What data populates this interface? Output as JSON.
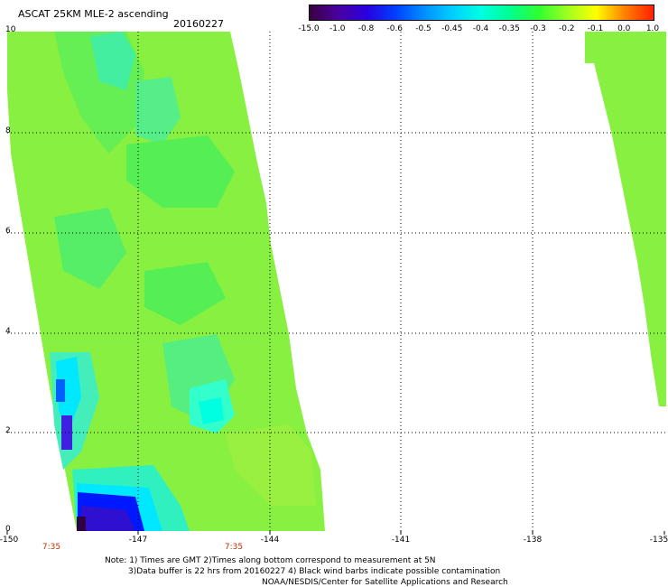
{
  "header": {
    "title": "ASCAT 25KM MLE-2 ascending",
    "date": "20160227"
  },
  "colorbar": {
    "labels": [
      "-15.0",
      "-1.0",
      "-0.8",
      "-0.6",
      "-0.5",
      "-0.45",
      "-0.4",
      "-0.35",
      "-0.3",
      "-0.2",
      "-0.1",
      "0.0",
      "1.0"
    ],
    "colors": [
      "#3a0040",
      "#4a00a0",
      "#2a00e0",
      "#0040ff",
      "#0090ff",
      "#00d0ff",
      "#00ffe0",
      "#00ff90",
      "#30ff30",
      "#a0ff20",
      "#ffff00",
      "#ff8000",
      "#ff2000"
    ]
  },
  "axes": {
    "y_ticks": [
      "10",
      "8",
      "6",
      "4",
      "2",
      "0"
    ],
    "x_ticks": [
      "-150",
      "-147",
      "-144",
      "-141",
      "-138",
      "-135"
    ],
    "time_labels": [
      "7:35",
      "7:35"
    ]
  },
  "notes": {
    "line1": "Note: 1) Times are GMT 2)Times along bottom correspond to measurement at 5N",
    "line2": "3)Data buffer is 22 hrs from 20160227 4) Black wind barbs indicate possible contamination",
    "line3": "NOAA/NESDIS/Center for Satellite Applications and Research"
  }
}
